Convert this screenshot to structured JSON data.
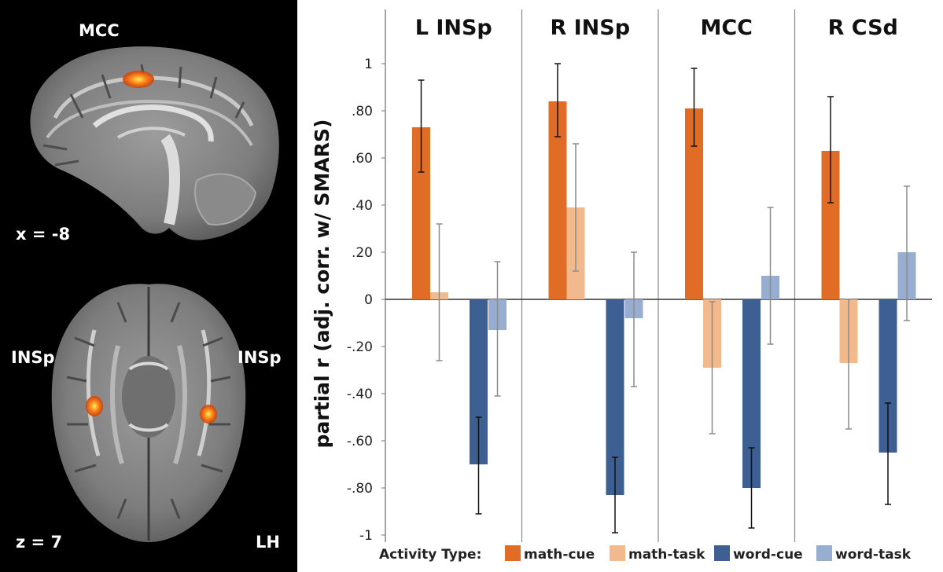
{
  "brain": {
    "sagittal": {
      "region_label": "MCC",
      "coord_label": "x = -8"
    },
    "axial": {
      "left_label": "INSp",
      "right_label": "INSp",
      "coord_label": "z = 7",
      "hemisphere_label": "LH"
    }
  },
  "chart_data": {
    "type": "bar",
    "ylabel": "partial r (adj. corr. w/ SMARS)",
    "ylim": [
      -1,
      1.1
    ],
    "yticks": [
      1,
      0.8,
      0.6,
      0.4,
      0.2,
      0,
      -0.2,
      -0.4,
      -0.6,
      -0.8,
      -1
    ],
    "ytick_labels": [
      "1",
      ".80",
      ".60",
      ".40",
      ".20",
      "0",
      "-.20",
      "-.40",
      "-.60",
      "-.80",
      "-1"
    ],
    "legend": {
      "title": "Activity Type:",
      "entries": [
        "math-cue",
        "math-task",
        "word-cue",
        "word-task"
      ],
      "colors": [
        "#e06c26",
        "#f2b98c",
        "#3d5f92",
        "#98aed0"
      ]
    },
    "panels": [
      {
        "title": "L INSp",
        "series": [
          {
            "name": "math-cue",
            "value": 0.73,
            "err_low": 0.54,
            "err_high": 0.93
          },
          {
            "name": "math-task",
            "value": 0.03,
            "err_low": -0.26,
            "err_high": 0.32
          },
          {
            "name": "word-cue",
            "value": -0.7,
            "err_low": -0.91,
            "err_high": -0.5
          },
          {
            "name": "word-task",
            "value": -0.13,
            "err_low": -0.41,
            "err_high": 0.16
          }
        ]
      },
      {
        "title": "R INSp",
        "series": [
          {
            "name": "math-cue",
            "value": 0.84,
            "err_low": 0.69,
            "err_high": 1.0
          },
          {
            "name": "math-task",
            "value": 0.39,
            "err_low": 0.12,
            "err_high": 0.66
          },
          {
            "name": "word-cue",
            "value": -0.83,
            "err_low": -0.99,
            "err_high": -0.67
          },
          {
            "name": "word-task",
            "value": -0.08,
            "err_low": -0.37,
            "err_high": 0.2
          }
        ]
      },
      {
        "title": "MCC",
        "series": [
          {
            "name": "math-cue",
            "value": 0.81,
            "err_low": 0.65,
            "err_high": 0.98
          },
          {
            "name": "math-task",
            "value": -0.29,
            "err_low": -0.57,
            "err_high": -0.01
          },
          {
            "name": "word-cue",
            "value": -0.8,
            "err_low": -0.97,
            "err_high": -0.63
          },
          {
            "name": "word-task",
            "value": 0.1,
            "err_low": -0.19,
            "err_high": 0.39
          }
        ]
      },
      {
        "title": "R CSd",
        "series": [
          {
            "name": "math-cue",
            "value": 0.63,
            "err_low": 0.41,
            "err_high": 0.86
          },
          {
            "name": "math-task",
            "value": -0.27,
            "err_low": -0.55,
            "err_high": 0.0
          },
          {
            "name": "word-cue",
            "value": -0.65,
            "err_low": -0.87,
            "err_high": -0.44
          },
          {
            "name": "word-task",
            "value": 0.2,
            "err_low": -0.09,
            "err_high": 0.48
          }
        ]
      }
    ]
  }
}
